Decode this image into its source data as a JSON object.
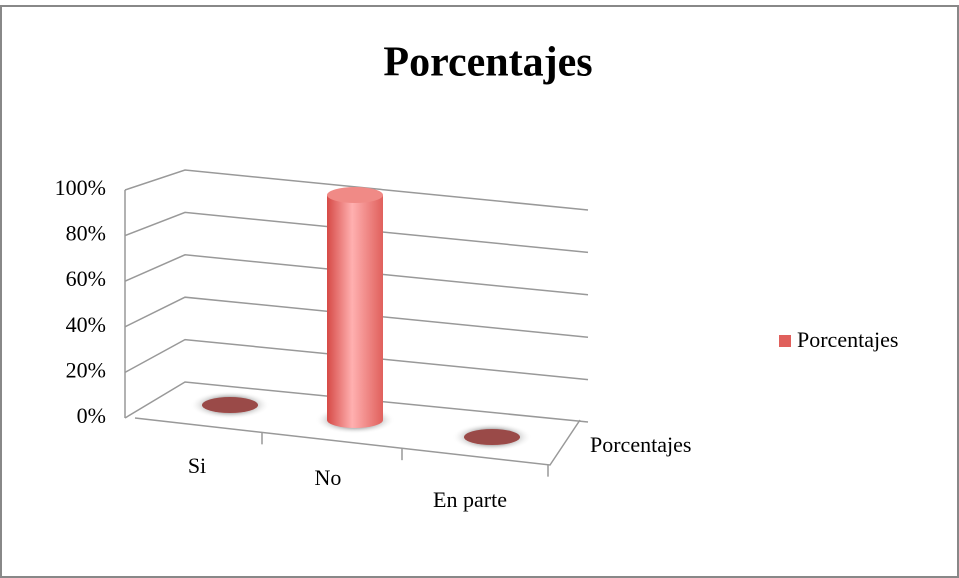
{
  "chart_data": {
    "type": "bar3d",
    "title": "Porcentajes",
    "categories": [
      "Si",
      "No",
      "En parte"
    ],
    "series": [
      {
        "name": "Porcentajes",
        "color": "#e0605c",
        "values": [
          0,
          100,
          0
        ]
      }
    ],
    "ylim": [
      0,
      100
    ],
    "yticks": [
      {
        "value": 0,
        "label": "0%"
      },
      {
        "value": 20,
        "label": "20%"
      },
      {
        "value": 40,
        "label": "40%"
      },
      {
        "value": 60,
        "label": "60%"
      },
      {
        "value": 80,
        "label": "80%"
      },
      {
        "value": 100,
        "label": "100%"
      }
    ],
    "grid": true,
    "legend": "right"
  }
}
